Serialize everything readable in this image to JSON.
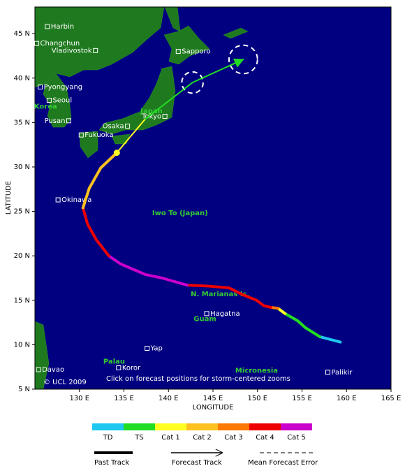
{
  "chart_data": {
    "type": "storm-track-map",
    "xlim": [
      125,
      165
    ],
    "ylim": [
      5,
      48
    ],
    "xticks": [
      {
        "value": 130,
        "label": "130 E"
      },
      {
        "value": 135,
        "label": "135 E"
      },
      {
        "value": 140,
        "label": "140 E"
      },
      {
        "value": 145,
        "label": "145 E"
      },
      {
        "value": 150,
        "label": "150 E"
      },
      {
        "value": 155,
        "label": "155 E"
      },
      {
        "value": 160,
        "label": "160 E"
      },
      {
        "value": 165,
        "label": "165 E"
      }
    ],
    "yticks": [
      {
        "value": 5,
        "label": "5 N"
      },
      {
        "value": 10,
        "label": "10 N"
      },
      {
        "value": 15,
        "label": "15 N"
      },
      {
        "value": 20,
        "label": "20 N"
      },
      {
        "value": 25,
        "label": "25 N"
      },
      {
        "value": 30,
        "label": "30 N"
      },
      {
        "value": 35,
        "label": "35 N"
      },
      {
        "value": 40,
        "label": "40 N"
      },
      {
        "value": 45,
        "label": "45 N"
      }
    ],
    "xlabel": "LONGITUDE",
    "ylabel": "LATITUDE",
    "copyright": "© UCL 2009",
    "note": "Click on forecast positions for storm-centered zooms",
    "categories": [
      {
        "name": "TD",
        "color": "#1ec8f0"
      },
      {
        "name": "TS",
        "color": "#22dd22"
      },
      {
        "name": "Cat 1",
        "color": "#ffff22"
      },
      {
        "name": "Cat 2",
        "color": "#ffc020"
      },
      {
        "name": "Cat 3",
        "color": "#ff7800"
      },
      {
        "name": "Cat 4",
        "color": "#ee0000"
      },
      {
        "name": "Cat 5",
        "color": "#cc00cc"
      }
    ],
    "past_track": [
      {
        "category": 0,
        "lon": [
          159.3,
          157.0
        ],
        "lat": [
          10.3,
          10.9
        ]
      },
      {
        "category": 1,
        "lon": [
          157.0,
          155.4,
          154.5,
          153.1
        ],
        "lat": [
          10.9,
          11.9,
          12.7,
          13.5
        ]
      },
      {
        "category": 2,
        "lon": [
          153.1,
          152.3
        ],
        "lat": [
          13.5,
          14.1
        ]
      },
      {
        "category": 4,
        "lon": [
          152.3,
          151.5
        ],
        "lat": [
          14.1,
          14.2
        ]
      },
      {
        "category": 5,
        "lon": [
          151.5,
          150.7,
          149.9,
          148.4,
          146.8,
          144.4,
          142.1
        ],
        "lat": [
          14.2,
          14.4,
          15.0,
          15.6,
          16.4,
          16.6,
          16.7
        ]
      },
      {
        "category": 6,
        "lon": [
          142.1,
          139.3,
          137.4,
          134.6,
          133.3
        ],
        "lat": [
          16.7,
          17.5,
          17.9,
          19.1,
          20.0
        ]
      },
      {
        "category": 5,
        "lon": [
          133.3,
          131.9,
          130.9,
          130.4
        ],
        "lat": [
          20.0,
          21.8,
          23.6,
          25.4
        ]
      },
      {
        "category": 3,
        "lon": [
          130.4,
          131.1,
          132.4,
          134.2
        ],
        "lat": [
          25.4,
          27.6,
          29.9,
          31.6
        ]
      }
    ],
    "current_position": {
      "lon": 134.2,
      "lat": 31.6
    },
    "forecast_track": [
      {
        "category": 2,
        "lon": [
          134.2,
          137.4
        ],
        "lat": [
          31.6,
          35.4
        ]
      },
      {
        "category": 1,
        "lon": [
          137.4,
          142.7,
          148.4
        ],
        "lat": [
          35.4,
          39.5,
          42.1
        ]
      }
    ],
    "forecast_error": [
      {
        "lon": 142.7,
        "lat": 39.5,
        "radius": 1.2
      },
      {
        "lon": 148.4,
        "lat": 42.1,
        "radius": 1.6
      }
    ],
    "cities": [
      {
        "name": "Harbin",
        "lon": 126.4,
        "lat": 45.8,
        "side": "right"
      },
      {
        "name": "Changchun",
        "lon": 125.2,
        "lat": 43.9,
        "side": "right"
      },
      {
        "name": "Vladivostok",
        "lon": 131.8,
        "lat": 43.1,
        "side": "left"
      },
      {
        "name": "Sapporo",
        "lon": 141.1,
        "lat": 43.0,
        "side": "right"
      },
      {
        "name": "Pyongyang",
        "lon": 125.6,
        "lat": 39.0,
        "side": "right"
      },
      {
        "name": "Seoul",
        "lon": 126.6,
        "lat": 37.5,
        "side": "right"
      },
      {
        "name": "Pusan",
        "lon": 128.8,
        "lat": 35.2,
        "side": "left"
      },
      {
        "name": "Osaka",
        "lon": 135.4,
        "lat": 34.6,
        "side": "left"
      },
      {
        "name": "Fukuoka",
        "lon": 130.2,
        "lat": 33.6,
        "side": "right"
      },
      {
        "name": "Tokyo",
        "lon": 139.6,
        "lat": 35.7,
        "side": "left"
      },
      {
        "name": "Okinawa",
        "lon": 127.6,
        "lat": 26.3,
        "side": "right"
      },
      {
        "name": "Hagatna",
        "lon": 144.3,
        "lat": 13.5,
        "side": "right"
      },
      {
        "name": "Yap",
        "lon": 137.6,
        "lat": 9.6,
        "side": "right"
      },
      {
        "name": "Koror",
        "lon": 134.4,
        "lat": 7.4,
        "side": "right"
      },
      {
        "name": "Davao",
        "lon": 125.4,
        "lat": 7.2,
        "side": "right"
      },
      {
        "name": "Palikir",
        "lon": 157.9,
        "lat": 6.9,
        "side": "right"
      }
    ],
    "regions": [
      {
        "name": "Iwo To (Japan)",
        "lon": 141.3,
        "lat": 24.8
      },
      {
        "name": "N. Marianas Is.",
        "lon": 145.8,
        "lat": 15.7
      },
      {
        "name": "Guam",
        "lon": 144.1,
        "lat": 12.9
      },
      {
        "name": "Palau",
        "lon": 133.9,
        "lat": 8.1
      },
      {
        "name": "Micronesia",
        "lon": 149.9,
        "lat": 7.1
      },
      {
        "name": "Korea",
        "lon": 126.2,
        "lat": 36.8
      },
      {
        "name": "Japan",
        "lon": 138.1,
        "lat": 36.3
      }
    ],
    "legend": {
      "past": "Past Track",
      "forecast": "Forecast Track",
      "error": "Mean Forecast Error"
    }
  }
}
